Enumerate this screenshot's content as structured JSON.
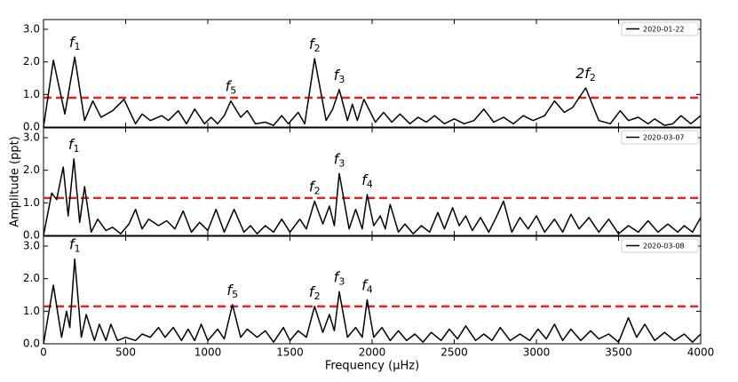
{
  "chart_data": [
    {
      "type": "line",
      "xlim": [
        0,
        4000
      ],
      "ylim": [
        0,
        3.3
      ],
      "yticks": [
        {
          "value": 0,
          "label": "0.0"
        },
        {
          "value": 1,
          "label": "1.0"
        },
        {
          "value": 2,
          "label": "2.0"
        },
        {
          "value": 3,
          "label": "3.0"
        }
      ],
      "threshold": 0.9,
      "threshold_color": "#e8211e",
      "legend": "upper right",
      "x": [
        0,
        60,
        130,
        190,
        250,
        300,
        350,
        420,
        490,
        560,
        600,
        650,
        720,
        760,
        820,
        870,
        920,
        980,
        1020,
        1060,
        1100,
        1140,
        1200,
        1240,
        1290,
        1350,
        1400,
        1450,
        1490,
        1550,
        1590,
        1650,
        1720,
        1760,
        1800,
        1850,
        1880,
        1910,
        1950,
        2020,
        2070,
        2120,
        2170,
        2230,
        2280,
        2330,
        2380,
        2440,
        2500,
        2560,
        2620,
        2680,
        2740,
        2800,
        2860,
        2920,
        2980,
        3050,
        3110,
        3170,
        3220,
        3300,
        3380,
        3450,
        3510,
        3560,
        3620,
        3680,
        3720,
        3780,
        3830,
        3880,
        3940,
        4000
      ],
      "series": [
        {
          "name": "2020-01-22",
          "color": "#000000",
          "values": [
            0,
            2.05,
            0.4,
            2.15,
            0.2,
            0.8,
            0.3,
            0.5,
            0.85,
            0.1,
            0.4,
            0.2,
            0.35,
            0.2,
            0.5,
            0.1,
            0.55,
            0.1,
            0.3,
            0.1,
            0.35,
            0.8,
            0.3,
            0.5,
            0.1,
            0.15,
            0.05,
            0.35,
            0.1,
            0.45,
            0.1,
            2.1,
            0.2,
            0.55,
            1.15,
            0.2,
            0.7,
            0.2,
            0.85,
            0.15,
            0.45,
            0.15,
            0.4,
            0.1,
            0.3,
            0.15,
            0.35,
            0.1,
            0.25,
            0.1,
            0.2,
            0.55,
            0.15,
            0.3,
            0.1,
            0.35,
            0.2,
            0.35,
            0.8,
            0.45,
            0.6,
            1.2,
            0.2,
            0.1,
            0.5,
            0.2,
            0.3,
            0.1,
            0.25,
            0.05,
            0.1,
            0.35,
            0.1,
            0.35
          ]
        }
      ],
      "annotations": [
        {
          "base": "f",
          "sub": "1",
          "x": 190
        },
        {
          "base": "f",
          "sub": "5",
          "x": 1140
        },
        {
          "base": "f",
          "sub": "2",
          "x": 1650
        },
        {
          "base": "f",
          "sub": "3",
          "x": 1800
        },
        {
          "base": "2f",
          "sub": "2",
          "x": 3300
        }
      ]
    },
    {
      "type": "line",
      "xlim": [
        0,
        4000
      ],
      "ylim": [
        0,
        3.3
      ],
      "ylabel": "Amplitude (ppt)",
      "yticks": [
        {
          "value": 0,
          "label": "0.0"
        },
        {
          "value": 1,
          "label": "1.0"
        },
        {
          "value": 2,
          "label": "2.0"
        },
        {
          "value": 3,
          "label": "3.0"
        }
      ],
      "threshold": 1.15,
      "threshold_color": "#e8211e",
      "legend": "upper right",
      "x": [
        0,
        50,
        80,
        120,
        150,
        185,
        220,
        250,
        290,
        330,
        380,
        420,
        470,
        520,
        560,
        600,
        640,
        700,
        750,
        800,
        850,
        900,
        950,
        1000,
        1050,
        1100,
        1160,
        1220,
        1260,
        1300,
        1350,
        1400,
        1450,
        1500,
        1560,
        1600,
        1650,
        1700,
        1740,
        1770,
        1800,
        1860,
        1900,
        1940,
        1970,
        2010,
        2050,
        2080,
        2110,
        2160,
        2200,
        2250,
        2300,
        2350,
        2400,
        2440,
        2490,
        2530,
        2570,
        2610,
        2660,
        2710,
        2750,
        2800,
        2850,
        2900,
        2950,
        3000,
        3050,
        3110,
        3160,
        3210,
        3260,
        3320,
        3380,
        3440,
        3500,
        3560,
        3620,
        3680,
        3740,
        3800,
        3860,
        3900,
        3950,
        4000
      ],
      "series": [
        {
          "name": "2020-03-07",
          "color": "#000000",
          "values": [
            0,
            1.3,
            1.1,
            2.1,
            0.6,
            2.35,
            0.4,
            1.5,
            0.1,
            0.5,
            0.15,
            0.25,
            0.05,
            0.35,
            0.8,
            0.2,
            0.5,
            0.3,
            0.45,
            0.2,
            0.75,
            0.1,
            0.4,
            0.15,
            0.8,
            0.1,
            0.8,
            0.1,
            0.3,
            0.05,
            0.3,
            0.1,
            0.5,
            0.1,
            0.5,
            0.2,
            1.05,
            0.35,
            0.9,
            0.3,
            1.9,
            0.2,
            0.8,
            0.2,
            1.25,
            0.3,
            0.6,
            0.2,
            0.95,
            0.1,
            0.35,
            0.05,
            0.3,
            0.1,
            0.7,
            0.2,
            0.85,
            0.3,
            0.6,
            0.15,
            0.55,
            0.1,
            0.5,
            1.05,
            0.1,
            0.55,
            0.2,
            0.6,
            0.1,
            0.5,
            0.1,
            0.65,
            0.2,
            0.55,
            0.1,
            0.5,
            0.05,
            0.3,
            0.1,
            0.45,
            0.1,
            0.35,
            0.1,
            0.3,
            0.1,
            0.55
          ]
        }
      ],
      "annotations": [
        {
          "base": "f",
          "sub": "1",
          "x": 185
        },
        {
          "base": "f",
          "sub": "2",
          "x": 1650
        },
        {
          "base": "f",
          "sub": "3",
          "x": 1800
        },
        {
          "base": "f",
          "sub": "4",
          "x": 1970
        }
      ]
    },
    {
      "type": "line",
      "xlim": [
        0,
        4000
      ],
      "ylim": [
        0,
        3.3
      ],
      "xlabel": "Frequency (μHz)",
      "xticks": [
        0,
        500,
        1000,
        1500,
        2000,
        2500,
        3000,
        3500,
        4000
      ],
      "yticks": [
        {
          "value": 0,
          "label": "0.0"
        },
        {
          "value": 1,
          "label": "1.0"
        },
        {
          "value": 2,
          "label": "2.0"
        },
        {
          "value": 3,
          "label": "3.0"
        }
      ],
      "threshold": 1.15,
      "threshold_color": "#e8211e",
      "legend": "upper right",
      "x": [
        0,
        60,
        110,
        140,
        160,
        190,
        230,
        260,
        310,
        340,
        380,
        410,
        450,
        500,
        560,
        600,
        650,
        700,
        740,
        790,
        840,
        880,
        920,
        960,
        1000,
        1060,
        1100,
        1150,
        1200,
        1240,
        1300,
        1350,
        1400,
        1460,
        1500,
        1550,
        1600,
        1650,
        1700,
        1740,
        1770,
        1800,
        1850,
        1900,
        1940,
        1970,
        2010,
        2060,
        2110,
        2160,
        2210,
        2260,
        2310,
        2360,
        2420,
        2470,
        2520,
        2570,
        2630,
        2680,
        2730,
        2780,
        2840,
        2900,
        2960,
        3010,
        3060,
        3110,
        3160,
        3210,
        3270,
        3330,
        3380,
        3440,
        3500,
        3560,
        3610,
        3660,
        3720,
        3780,
        3840,
        3900,
        3950,
        4000
      ],
      "series": [
        {
          "name": "2020-03-08",
          "color": "#000000",
          "values": [
            0,
            1.8,
            0.2,
            1.0,
            0.5,
            2.6,
            0.2,
            0.9,
            0.1,
            0.6,
            0.1,
            0.6,
            0.1,
            0.2,
            0.1,
            0.3,
            0.2,
            0.5,
            0.2,
            0.5,
            0.1,
            0.45,
            0.1,
            0.6,
            0.1,
            0.45,
            0.15,
            1.2,
            0.2,
            0.45,
            0.2,
            0.4,
            0.05,
            0.5,
            0.1,
            0.4,
            0.2,
            1.15,
            0.35,
            0.9,
            0.4,
            1.6,
            0.2,
            0.5,
            0.2,
            1.35,
            0.2,
            0.5,
            0.1,
            0.4,
            0.1,
            0.3,
            0.05,
            0.35,
            0.1,
            0.45,
            0.15,
            0.55,
            0.1,
            0.3,
            0.1,
            0.5,
            0.1,
            0.3,
            0.1,
            0.45,
            0.15,
            0.6,
            0.1,
            0.45,
            0.1,
            0.4,
            0.15,
            0.3,
            0.05,
            0.8,
            0.2,
            0.6,
            0.1,
            0.35,
            0.1,
            0.3,
            0.05,
            0.3
          ]
        }
      ],
      "annotations": [
        {
          "base": "f",
          "sub": "1",
          "x": 190
        },
        {
          "base": "f",
          "sub": "5",
          "x": 1150
        },
        {
          "base": "f",
          "sub": "2",
          "x": 1650
        },
        {
          "base": "f",
          "sub": "3",
          "x": 1800
        },
        {
          "base": "f",
          "sub": "4",
          "x": 1970
        }
      ]
    }
  ]
}
